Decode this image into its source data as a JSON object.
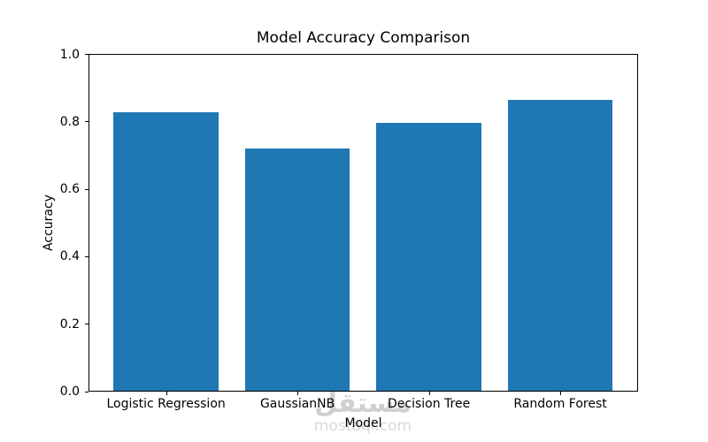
{
  "figure": {
    "background": "#ffffff",
    "watermark": {
      "line1": "مستقل",
      "line2": "mostaql.com",
      "color": "#d2d2d2"
    }
  },
  "chart_data": {
    "type": "bar",
    "title": "Model Accuracy Comparison",
    "xlabel": "Model",
    "ylabel": "Accuracy",
    "categories": [
      "Logistic Regression",
      "GaussianNB",
      "Decision Tree",
      "Random Forest"
    ],
    "values": [
      0.827,
      0.72,
      0.797,
      0.865
    ],
    "ylim": [
      0.0,
      1.0
    ],
    "yticks": [
      0.0,
      0.2,
      0.4,
      0.6,
      0.8,
      1.0
    ],
    "ytick_labels": [
      "0.0",
      "0.2",
      "0.4",
      "0.6",
      "0.8",
      "1.0"
    ],
    "bar_color": "#1f77b4",
    "bar_width_data_units": 0.8,
    "xlim": [
      -0.59,
      3.59
    ],
    "grid": false,
    "legend_position": "none"
  }
}
